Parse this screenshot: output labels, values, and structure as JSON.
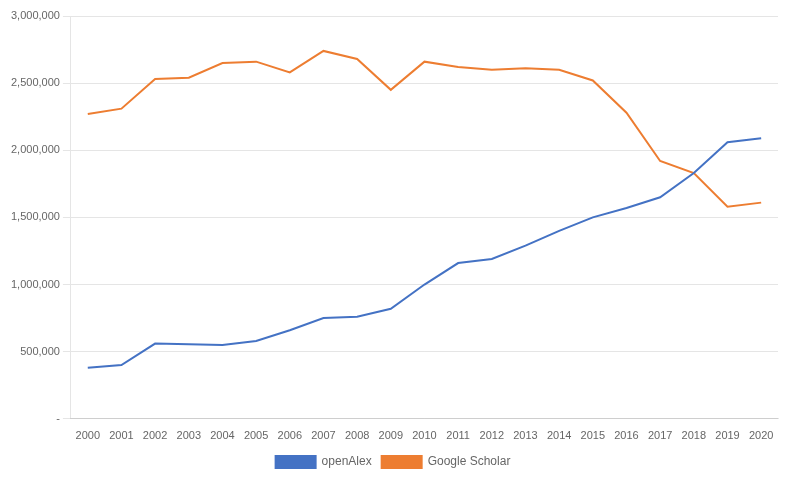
{
  "chart_data": {
    "type": "line",
    "x": [
      2000,
      2001,
      2002,
      2003,
      2004,
      2005,
      2006,
      2007,
      2008,
      2009,
      2010,
      2011,
      2012,
      2013,
      2014,
      2015,
      2016,
      2017,
      2018,
      2019,
      2020
    ],
    "series": [
      {
        "name": "openAlex",
        "color": "#4472C4",
        "values": [
          380000,
          400000,
          560000,
          555000,
          550000,
          580000,
          660000,
          750000,
          760000,
          820000,
          1000000,
          1160000,
          1190000,
          1290000,
          1400000,
          1500000,
          1570000,
          1650000,
          1830000,
          2060000,
          2090000
        ]
      },
      {
        "name": "Google Scholar",
        "color": "#ED7D31",
        "values": [
          2270000,
          2310000,
          2530000,
          2540000,
          2650000,
          2660000,
          2580000,
          2740000,
          2680000,
          2450000,
          2660000,
          2620000,
          2600000,
          2610000,
          2600000,
          2520000,
          2280000,
          1920000,
          1830000,
          1580000,
          1610000
        ]
      }
    ],
    "xlim": [
      1999.5,
      2020.5
    ],
    "xticks": [
      2000,
      2001,
      2002,
      2003,
      2004,
      2005,
      2006,
      2007,
      2008,
      2009,
      2010,
      2011,
      2012,
      2013,
      2014,
      2015,
      2016,
      2017,
      2018,
      2019,
      2020
    ],
    "ylim": [
      0,
      3000000
    ],
    "yticks": [
      {
        "value": 0,
        "label": "-"
      },
      {
        "value": 500000,
        "label": "500,000"
      },
      {
        "value": 1000000,
        "label": "1,000,000"
      },
      {
        "value": 1500000,
        "label": "1,500,000"
      },
      {
        "value": 2000000,
        "label": "2,000,000"
      },
      {
        "value": 2500000,
        "label": "2,500,000"
      },
      {
        "value": 3000000,
        "label": "3,000,000"
      }
    ],
    "grid": "y",
    "legend": "bottom"
  }
}
